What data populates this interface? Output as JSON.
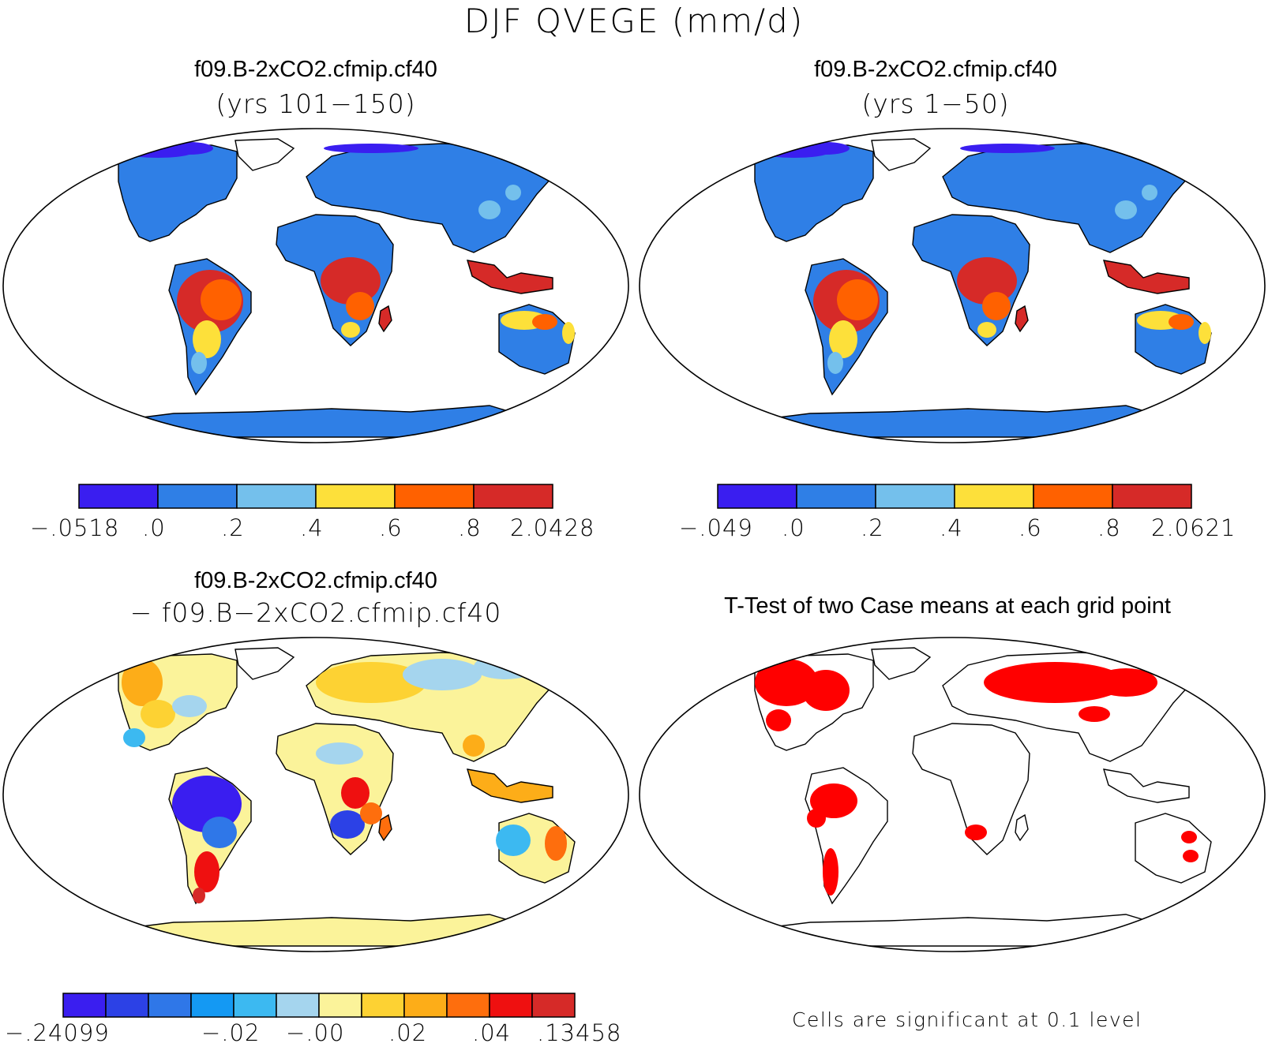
{
  "figure_title": "DJF QVEGE (mm/d)",
  "colors": {
    "abs_levels": [
      "#3a1ef0",
      "#2f7fe6",
      "#74c0ec",
      "#fde03a",
      "#ff6100",
      "#d62a28"
    ],
    "diff_levels": [
      "#3a1ef0",
      "#2c41e6",
      "#2f77e8",
      "#1499f3",
      "#3cb9f1",
      "#a5d5ee",
      "#fbf39a",
      "#fdd233",
      "#fdad18",
      "#fe6e0d",
      "#ef1010",
      "#d62a28"
    ],
    "significance": "#ff0000",
    "land_outline": "#000000"
  },
  "panels": [
    {
      "title": "f09.B-2xCO2.cfmip.cf40",
      "subtitle": "(yrs 101−150)",
      "colorbar_labels": [
        "−.0518",
        ".0",
        ".2",
        ".4",
        ".6",
        ".8",
        "2.0428"
      ]
    },
    {
      "title": "f09.B-2xCO2.cfmip.cf40",
      "subtitle": "(yrs 1−50)",
      "colorbar_labels": [
        "−.049",
        ".0",
        ".2",
        ".4",
        ".6",
        ".8",
        "2.0621"
      ]
    },
    {
      "title": "f09.B-2xCO2.cfmip.cf40",
      "subtitle": "− f09.B−2xCO2.cfmip.cf40",
      "colorbar_labels": [
        "−.24099",
        "−.02",
        "−.00",
        ".02",
        ".04",
        ".13458"
      ]
    },
    {
      "title": "T-Test of two Case means at each grid point",
      "note": "Cells are significant at 0.1 level"
    }
  ]
}
